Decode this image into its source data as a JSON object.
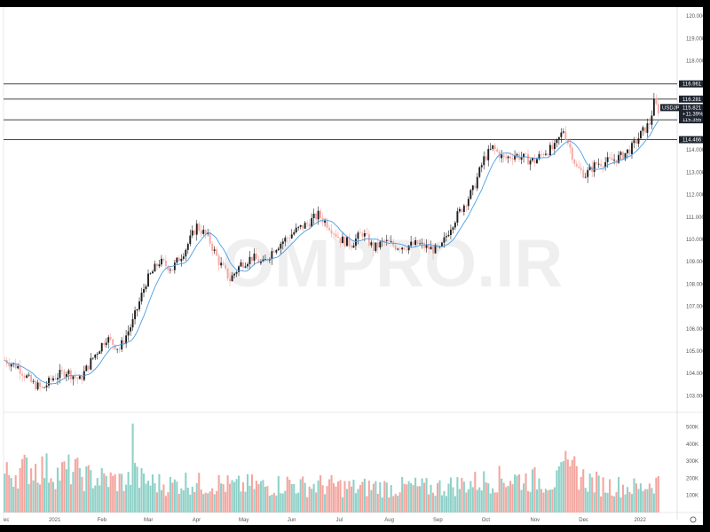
{
  "chart_data": {
    "type": "candlestick",
    "symbol": "USDJPY",
    "watermark": "OMPRO.IR",
    "colors": {
      "up": "#1e1e1e",
      "down": "#f7a7a2",
      "ma": "#4a9ee6",
      "vol_up": "#8fd1c8",
      "vol_down": "#f4a6a0",
      "level": "#444444",
      "tag_bg": "#1f2530",
      "tag_text": "#ffffff"
    },
    "y_axis": {
      "ticks": [
        "120.000",
        "119.000",
        "118.000",
        "116.961",
        "116.281",
        "115.355",
        "114.466",
        "114.000",
        "113.000",
        "112.000",
        "111.000",
        "110.000",
        "109.000",
        "108.000",
        "107.000",
        "106.000",
        "105.000",
        "104.000",
        "103.000"
      ],
      "plain_ticks": [
        120,
        119,
        118,
        114,
        113,
        112,
        111,
        110,
        109,
        108,
        107,
        106,
        105,
        104,
        103
      ],
      "range": [
        102.3,
        120.4
      ]
    },
    "volume_axis": {
      "ticks": [
        "500K",
        "400K",
        "300K",
        "200K",
        "100K"
      ],
      "values": [
        500,
        400,
        300,
        200,
        100
      ],
      "max": 560
    },
    "x_axis": {
      "labels": [
        "ec",
        "2021",
        "Feb",
        "Mar",
        "Apr",
        "May",
        "Jun",
        "Jul",
        "Aug",
        "Sep",
        "Oct",
        "Nov",
        "Dec",
        "2022"
      ]
    },
    "levels": [
      {
        "value": 116.961,
        "label": "116.961"
      },
      {
        "value": 116.281,
        "label": "116.281"
      },
      {
        "value": 115.355,
        "label": "115.355"
      },
      {
        "value": 114.466,
        "label": "114.466"
      }
    ],
    "price_tag": {
      "symbol": "USDJPY",
      "price": "115.821",
      "change": "+11.39%",
      "value": 115.821
    },
    "anchors": [
      [
        0,
        104.6
      ],
      [
        6,
        104.3
      ],
      [
        12,
        103.6
      ],
      [
        17,
        103.3
      ],
      [
        22,
        103.8
      ],
      [
        28,
        104.1
      ],
      [
        34,
        103.7
      ],
      [
        40,
        104.7
      ],
      [
        46,
        105.6
      ],
      [
        52,
        105.1
      ],
      [
        58,
        106.3
      ],
      [
        64,
        108.1
      ],
      [
        70,
        109.0
      ],
      [
        76,
        108.7
      ],
      [
        82,
        109.6
      ],
      [
        87,
        110.6
      ],
      [
        92,
        110.1
      ],
      [
        97,
        109.0
      ],
      [
        102,
        108.2
      ],
      [
        107,
        108.9
      ],
      [
        112,
        109.2
      ],
      [
        117,
        108.9
      ],
      [
        122,
        109.6
      ],
      [
        127,
        110.0
      ],
      [
        132,
        110.4
      ],
      [
        137,
        110.7
      ],
      [
        142,
        111.1
      ],
      [
        147,
        110.6
      ],
      [
        152,
        110.0
      ],
      [
        157,
        109.8
      ],
      [
        162,
        110.3
      ],
      [
        167,
        109.6
      ],
      [
        172,
        109.9
      ],
      [
        177,
        109.7
      ],
      [
        182,
        109.7
      ],
      [
        187,
        109.8
      ],
      [
        192,
        109.6
      ],
      [
        197,
        109.5
      ],
      [
        202,
        110.6
      ],
      [
        207,
        111.4
      ],
      [
        212,
        112.2
      ],
      [
        217,
        113.6
      ],
      [
        221,
        114.1
      ],
      [
        226,
        113.6
      ],
      [
        231,
        113.8
      ],
      [
        236,
        113.6
      ],
      [
        240,
        113.5
      ],
      [
        244,
        113.9
      ],
      [
        249,
        114.1
      ],
      [
        253,
        114.9
      ],
      [
        256,
        114.1
      ],
      [
        259,
        113.2
      ],
      [
        263,
        112.9
      ],
      [
        268,
        113.4
      ],
      [
        274,
        113.5
      ],
      [
        279,
        113.7
      ],
      [
        284,
        114.1
      ],
      [
        288,
        114.7
      ],
      [
        292,
        115.2
      ],
      [
        294,
        116.1
      ],
      [
        296,
        115.8
      ]
    ],
    "volume_profile": [
      [
        0,
        230
      ],
      [
        6,
        250
      ],
      [
        12,
        280
      ],
      [
        18,
        270
      ],
      [
        24,
        240
      ],
      [
        30,
        260
      ],
      [
        36,
        220
      ],
      [
        42,
        210
      ],
      [
        48,
        200
      ],
      [
        55,
        190
      ],
      [
        58,
        220
      ],
      [
        62,
        200
      ],
      [
        68,
        180
      ],
      [
        76,
        170
      ],
      [
        82,
        190
      ],
      [
        90,
        170
      ],
      [
        96,
        180
      ],
      [
        104,
        160
      ],
      [
        112,
        170
      ],
      [
        120,
        160
      ],
      [
        128,
        180
      ],
      [
        136,
        160
      ],
      [
        144,
        170
      ],
      [
        152,
        160
      ],
      [
        160,
        150
      ],
      [
        168,
        160
      ],
      [
        176,
        150
      ],
      [
        184,
        160
      ],
      [
        192,
        150
      ],
      [
        200,
        160
      ],
      [
        210,
        180
      ],
      [
        220,
        200
      ],
      [
        230,
        210
      ],
      [
        240,
        200
      ],
      [
        250,
        190
      ],
      [
        256,
        280
      ],
      [
        262,
        210
      ],
      [
        270,
        170
      ],
      [
        280,
        160
      ],
      [
        288,
        150
      ],
      [
        292,
        180
      ],
      [
        296,
        190
      ]
    ],
    "volume_spikes": [
      [
        34,
        260
      ],
      [
        58,
        520
      ],
      [
        59,
        290
      ],
      [
        253,
        300
      ],
      [
        254,
        360
      ],
      [
        255,
        310
      ],
      [
        256,
        270
      ]
    ]
  }
}
